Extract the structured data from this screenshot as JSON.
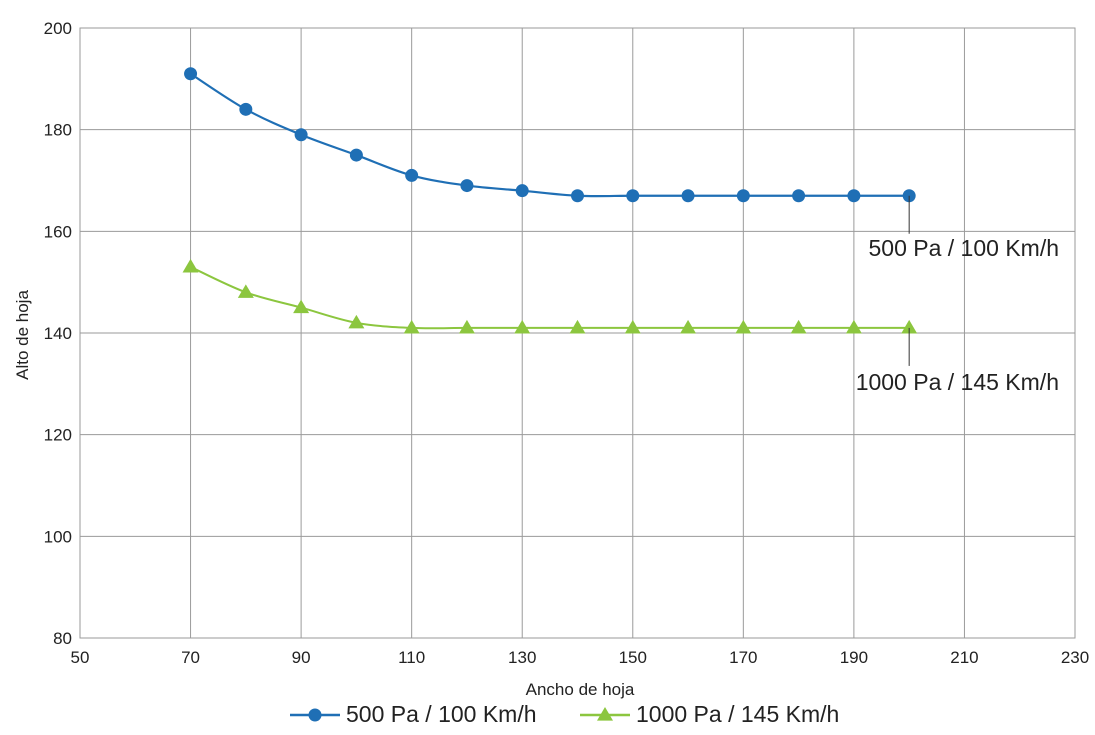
{
  "chart_data": {
    "type": "line",
    "xlabel": "Ancho de hoja",
    "ylabel": "Alto de hoja",
    "xlim": [
      50,
      230
    ],
    "ylim": [
      80,
      200
    ],
    "x_ticks": [
      "50",
      "70",
      "90",
      "110",
      "130",
      "150",
      "170",
      "190",
      "210",
      "230"
    ],
    "y_ticks": [
      "80",
      "100",
      "120",
      "140",
      "160",
      "180",
      "200"
    ],
    "grid": true,
    "legend_placement": "bottom-center",
    "series": [
      {
        "name": "500 Pa / 100 Km/h",
        "marker": "circle",
        "color": "#1f6fb5",
        "x": [
          70,
          80,
          90,
          100,
          110,
          120,
          130,
          140,
          150,
          160,
          170,
          180,
          190,
          200
        ],
        "y": [
          191,
          184,
          179,
          175,
          171,
          169,
          168,
          167,
          167,
          167,
          167,
          167,
          167,
          167
        ]
      },
      {
        "name": "1000 Pa / 145 Km/h",
        "marker": "triangle",
        "color": "#8cc63f",
        "x": [
          70,
          80,
          90,
          100,
          110,
          120,
          130,
          140,
          150,
          160,
          170,
          180,
          190,
          200
        ],
        "y": [
          153,
          148,
          145,
          142,
          141,
          141,
          141,
          141,
          141,
          141,
          141,
          141,
          141,
          141
        ]
      }
    ],
    "annotations": [
      {
        "text": "500 Pa / 100 Km/h",
        "series": 0,
        "point": 13
      },
      {
        "text": "1000 Pa / 145 Km/h",
        "series": 1,
        "point": 13
      }
    ]
  }
}
